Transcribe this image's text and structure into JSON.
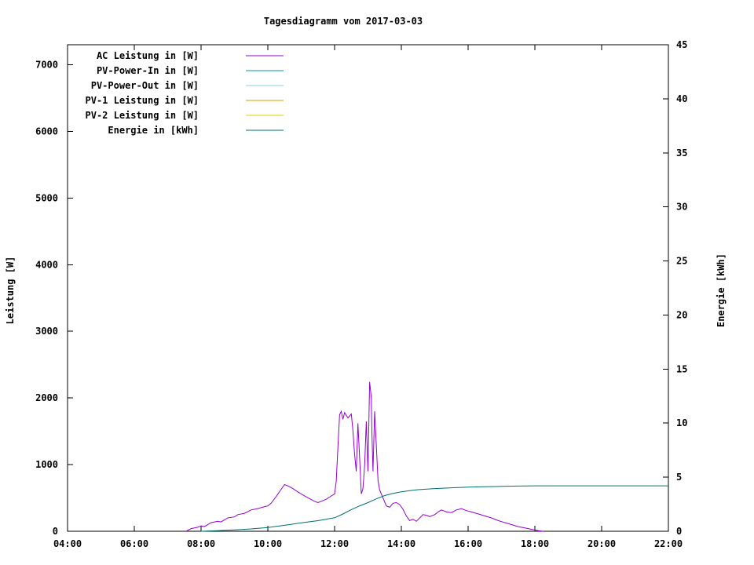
{
  "title": "Tagesdiagramm vom 2017-03-03",
  "chart_data": {
    "type": "line",
    "title": "Tagesdiagramm vom 2017-03-03",
    "ylabel_left": "Leistung [W]",
    "ylabel_right": "Energie [kWh]",
    "xlabel": "",
    "grid": false,
    "legend_position": "top-left-inside",
    "x_axis": {
      "min": 4,
      "max": 22,
      "tick_values": [
        4,
        6,
        8,
        10,
        12,
        14,
        16,
        18,
        20,
        22
      ],
      "tick_labels": [
        "04:00",
        "06:00",
        "08:00",
        "10:00",
        "12:00",
        "14:00",
        "16:00",
        "18:00",
        "20:00",
        "22:00"
      ]
    },
    "y_left": {
      "min": 0,
      "max": 7300,
      "tick_values": [
        0,
        1000,
        2000,
        3000,
        4000,
        5000,
        6000,
        7000
      ]
    },
    "y_right": {
      "min": 0,
      "max": 45,
      "tick_values": [
        0,
        5,
        10,
        15,
        20,
        25,
        30,
        35,
        40,
        45
      ]
    },
    "series": [
      {
        "name": "AC Leistung in [W]",
        "color": "#9400d3",
        "axis": "left",
        "points": [
          [
            7.55,
            0
          ],
          [
            7.7,
            40
          ],
          [
            7.9,
            60
          ],
          [
            8.0,
            80
          ],
          [
            8.1,
            70
          ],
          [
            8.3,
            130
          ],
          [
            8.5,
            150
          ],
          [
            8.6,
            140
          ],
          [
            8.8,
            200
          ],
          [
            9.0,
            215
          ],
          [
            9.1,
            250
          ],
          [
            9.3,
            270
          ],
          [
            9.5,
            320
          ],
          [
            9.7,
            340
          ],
          [
            9.9,
            370
          ],
          [
            10.0,
            380
          ],
          [
            10.1,
            420
          ],
          [
            10.25,
            520
          ],
          [
            10.4,
            630
          ],
          [
            10.5,
            700
          ],
          [
            10.6,
            680
          ],
          [
            10.75,
            640
          ],
          [
            10.9,
            590
          ],
          [
            11.0,
            560
          ],
          [
            11.1,
            530
          ],
          [
            11.25,
            490
          ],
          [
            11.4,
            450
          ],
          [
            11.5,
            430
          ],
          [
            11.6,
            450
          ],
          [
            11.75,
            480
          ],
          [
            11.9,
            530
          ],
          [
            12.0,
            560
          ],
          [
            12.05,
            750
          ],
          [
            12.1,
            1250
          ],
          [
            12.15,
            1750
          ],
          [
            12.2,
            1800
          ],
          [
            12.25,
            1680
          ],
          [
            12.3,
            1780
          ],
          [
            12.4,
            1700
          ],
          [
            12.5,
            1760
          ],
          [
            12.55,
            1500
          ],
          [
            12.6,
            1150
          ],
          [
            12.65,
            900
          ],
          [
            12.7,
            1620
          ],
          [
            12.75,
            1100
          ],
          [
            12.8,
            560
          ],
          [
            12.85,
            640
          ],
          [
            12.9,
            1000
          ],
          [
            12.95,
            1650
          ],
          [
            13.0,
            900
          ],
          [
            13.05,
            2240
          ],
          [
            13.1,
            2000
          ],
          [
            13.12,
            1450
          ],
          [
            13.15,
            900
          ],
          [
            13.2,
            1800
          ],
          [
            13.25,
            1300
          ],
          [
            13.3,
            760
          ],
          [
            13.35,
            620
          ],
          [
            13.45,
            500
          ],
          [
            13.55,
            380
          ],
          [
            13.65,
            360
          ],
          [
            13.75,
            420
          ],
          [
            13.85,
            430
          ],
          [
            13.95,
            400
          ],
          [
            14.05,
            330
          ],
          [
            14.15,
            230
          ],
          [
            14.25,
            160
          ],
          [
            14.35,
            180
          ],
          [
            14.45,
            150
          ],
          [
            14.55,
            200
          ],
          [
            14.65,
            250
          ],
          [
            14.75,
            240
          ],
          [
            14.85,
            220
          ],
          [
            15.0,
            250
          ],
          [
            15.1,
            290
          ],
          [
            15.2,
            320
          ],
          [
            15.35,
            290
          ],
          [
            15.5,
            280
          ],
          [
            15.65,
            320
          ],
          [
            15.8,
            340
          ],
          [
            15.95,
            310
          ],
          [
            16.1,
            290
          ],
          [
            16.3,
            260
          ],
          [
            16.5,
            230
          ],
          [
            16.7,
            200
          ],
          [
            16.9,
            160
          ],
          [
            17.1,
            130
          ],
          [
            17.3,
            100
          ],
          [
            17.5,
            70
          ],
          [
            17.7,
            50
          ],
          [
            17.9,
            30
          ],
          [
            18.1,
            10
          ],
          [
            18.25,
            0
          ]
        ]
      },
      {
        "name": "PV-Power-In in [W]",
        "color": "#009999",
        "axis": "left",
        "points": []
      },
      {
        "name": "PV-Power-Out in [W]",
        "color": "#87ceeb",
        "axis": "left",
        "points": []
      },
      {
        "name": "PV-1 Leistung in [W]",
        "color": "#d69d00",
        "axis": "left",
        "points": []
      },
      {
        "name": "PV-2 Leistung in [W]",
        "color": "#d9cf00",
        "axis": "left",
        "points": []
      },
      {
        "name": "Energie in [kWh]",
        "color": "#007070",
        "axis": "right",
        "points": [
          [
            8.0,
            0.0
          ],
          [
            8.5,
            0.05
          ],
          [
            9.0,
            0.12
          ],
          [
            9.5,
            0.22
          ],
          [
            10.0,
            0.35
          ],
          [
            10.5,
            0.55
          ],
          [
            11.0,
            0.78
          ],
          [
            11.5,
            0.98
          ],
          [
            12.0,
            1.25
          ],
          [
            12.25,
            1.6
          ],
          [
            12.5,
            2.0
          ],
          [
            12.75,
            2.35
          ],
          [
            13.0,
            2.65
          ],
          [
            13.25,
            3.0
          ],
          [
            13.5,
            3.3
          ],
          [
            13.75,
            3.5
          ],
          [
            14.0,
            3.65
          ],
          [
            14.25,
            3.75
          ],
          [
            14.5,
            3.85
          ],
          [
            15.0,
            3.95
          ],
          [
            15.5,
            4.02
          ],
          [
            16.0,
            4.08
          ],
          [
            16.5,
            4.12
          ],
          [
            17.0,
            4.15
          ],
          [
            17.5,
            4.18
          ],
          [
            18.0,
            4.2
          ],
          [
            19.0,
            4.2
          ],
          [
            20.0,
            4.2
          ],
          [
            21.0,
            4.2
          ],
          [
            22.0,
            4.2
          ]
        ]
      }
    ]
  }
}
